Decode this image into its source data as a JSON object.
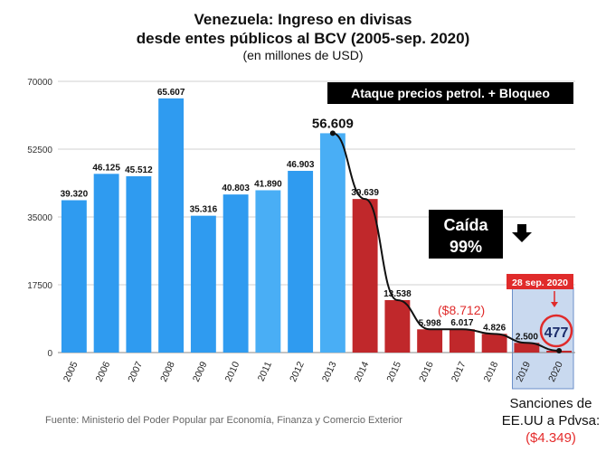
{
  "title_line1": "Venezuela: Ingreso en divisas",
  "title_line2": "desde entes públicos al BCV  (2005-sep. 2020)",
  "subtitle": "(en millones de USD)",
  "source": "Fuente: Ministerio del Poder Popular par Economía, Finanza y Comercio Exterior",
  "banner": "Ataque precios petrol. + Bloqueo",
  "drop_label_1": "Caída",
  "drop_label_2": "99%",
  "date_tag": "28 sep. 2020",
  "callout_value": "477",
  "paren_value": "($8.712)",
  "sanctions_line1": "Sanciones de",
  "sanctions_line2": "EE.UU a Pdvsa:",
  "sanctions_value": "($4.349)",
  "colors": {
    "bar_blue": "#2f9bf0",
    "bar_blue_light": "#49aef5",
    "bar_red": "#c0282b",
    "highlight_bg": "#c9d9ef",
    "highlight_border": "#6b8fc9",
    "tag_red": "#e02b2b"
  },
  "chart_data": {
    "type": "bar",
    "categories": [
      "2005",
      "2006",
      "2007",
      "2008",
      "2009",
      "2010",
      "2011",
      "2012",
      "2013",
      "2014",
      "2015",
      "2016",
      "2017",
      "2018",
      "2019",
      "2020"
    ],
    "values": [
      39320,
      46125,
      45512,
      65607,
      35316,
      40803,
      41890,
      46903,
      56609,
      39639,
      13538,
      5998,
      6017,
      4826,
      2500,
      477
    ],
    "value_labels": [
      "39.320",
      "46.125",
      "45.512",
      "65.607",
      "35.316",
      "40.803",
      "41.890",
      "46.903",
      "56.609",
      "39.639",
      "13.538",
      "5.998",
      "6.017",
      "4.826",
      "2.500",
      ""
    ],
    "bar_colors": [
      "blue",
      "blue",
      "blue",
      "blue",
      "blue",
      "blue",
      "light",
      "blue",
      "light",
      "red",
      "red",
      "red",
      "red",
      "red",
      "red",
      "red"
    ],
    "yticks": [
      0,
      17500,
      35000,
      52500,
      70000
    ],
    "ytick_labels": [
      "0",
      "17500",
      "35000",
      "52500",
      "70000"
    ],
    "ylim": [
      0,
      70000
    ],
    "trend_years": [
      "2013",
      "2014",
      "2015",
      "2016",
      "2017",
      "2018",
      "2019",
      "2020"
    ],
    "trend_values": [
      56609,
      39639,
      13538,
      5998,
      6017,
      4826,
      2500,
      477
    ],
    "grid": true
  }
}
